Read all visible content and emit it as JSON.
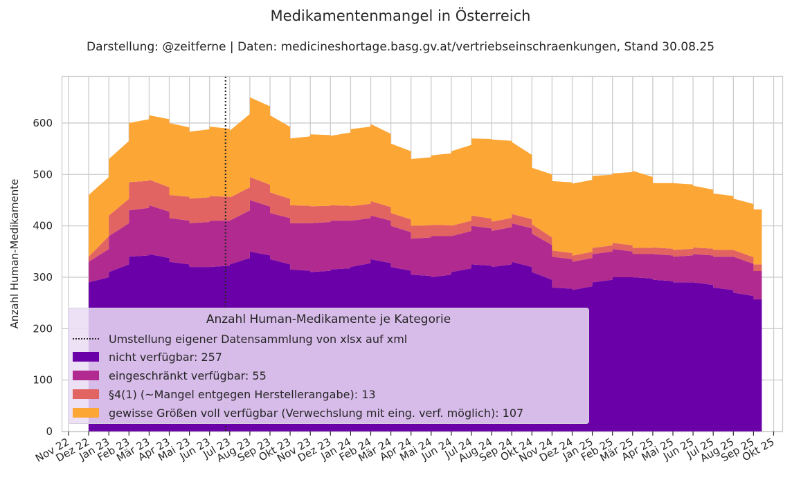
{
  "chart_data": {
    "type": "area",
    "stacked": true,
    "title": "Medikamentenmangel in Österreich",
    "subtitle": "Darstellung: @zeitferne | Daten: medicineshortage.basg.gv.at/vertriebseinschraenkungen, Stand 30.08.25",
    "ylabel": "Anzahl Human-Medikamente",
    "xlabel": "",
    "ylim": [
      0,
      690
    ],
    "yticks": [
      "0",
      "100",
      "200",
      "300",
      "400",
      "500",
      "600"
    ],
    "xticks": [
      "Nov 22",
      "Dez 22",
      "Jan 23",
      "Feb 23",
      "Mär 23",
      "Apr 23",
      "Mai 23",
      "Jun 23",
      "Jul 23",
      "Aug 23",
      "Sep 23",
      "Okt 23",
      "Nov 23",
      "Dez 23",
      "Jan 24",
      "Feb 24",
      "Mär 24",
      "Apr 24",
      "Mai 24",
      "Jun 24",
      "Jul 24",
      "Aug 24",
      "Sep 24",
      "Okt 24",
      "Nov 24",
      "Dez 24",
      "Jan 25",
      "Feb 25",
      "Mär 25",
      "Apr 25",
      "Mai 25",
      "Jun 25",
      "Jul 25",
      "Aug 25",
      "Sep 25",
      "Okt 25"
    ],
    "grid": true,
    "legend_position": "lower-left",
    "legend_title": "Anzahl Human-Medikamente je Kategorie",
    "vline": {
      "x": "Jul 23",
      "label": "Umstellung eigener Datensammlung von xlsx auf xml"
    },
    "x": [
      "Dez 22",
      "Jan 23",
      "Feb 23",
      "Mär 23",
      "Apr 23",
      "Mai 23",
      "Jun 23",
      "Jul 23",
      "Aug 23",
      "Sep 23",
      "Okt 23",
      "Nov 23",
      "Dez 23",
      "Jan 24",
      "Feb 24",
      "Mär 24",
      "Apr 24",
      "Mai 24",
      "Jun 24",
      "Jul 24",
      "Aug 24",
      "Sep 24",
      "Okt 24",
      "Nov 24",
      "Dez 24",
      "Jan 25",
      "Feb 25",
      "Mär 25",
      "Apr 25",
      "Mai 25",
      "Jun 25",
      "Jul 25",
      "Aug 25",
      "Sep 25"
    ],
    "series": [
      {
        "name": "nicht verfügbar: 257",
        "color": "#6a00a8",
        "values": [
          290,
          310,
          340,
          345,
          330,
          320,
          320,
          325,
          350,
          335,
          315,
          310,
          315,
          320,
          335,
          320,
          305,
          300,
          310,
          325,
          320,
          330,
          310,
          280,
          275,
          290,
          300,
          300,
          295,
          290,
          290,
          280,
          270,
          257
        ]
      },
      {
        "name": "eingeschränkt verfügbar: 55",
        "color": "#b12a90",
        "values": [
          40,
          70,
          90,
          95,
          85,
          85,
          90,
          85,
          100,
          90,
          90,
          95,
          95,
          90,
          85,
          80,
          70,
          80,
          70,
          75,
          70,
          75,
          75,
          60,
          55,
          55,
          55,
          45,
          50,
          50,
          55,
          60,
          70,
          55
        ]
      },
      {
        "name": "§4(1) (~Mangel entgegen Herstellerangabe): 13",
        "color": "#e16462",
        "values": [
          10,
          40,
          55,
          50,
          45,
          48,
          48,
          45,
          45,
          40,
          35,
          33,
          30,
          28,
          28,
          25,
          25,
          22,
          20,
          20,
          18,
          18,
          18,
          12,
          12,
          12,
          12,
          12,
          13,
          13,
          13,
          13,
          13,
          13
        ]
      },
      {
        "name": "gewisse Größen voll verfügbar (Verwechslung mit eing. verf. möglich): 107",
        "color": "#fca636",
        "values": [
          120,
          110,
          115,
          125,
          140,
          130,
          135,
          130,
          155,
          150,
          130,
          140,
          135,
          150,
          150,
          135,
          130,
          135,
          145,
          150,
          160,
          140,
          110,
          135,
          140,
          140,
          135,
          150,
          125,
          130,
          120,
          110,
          100,
          107
        ]
      }
    ]
  }
}
